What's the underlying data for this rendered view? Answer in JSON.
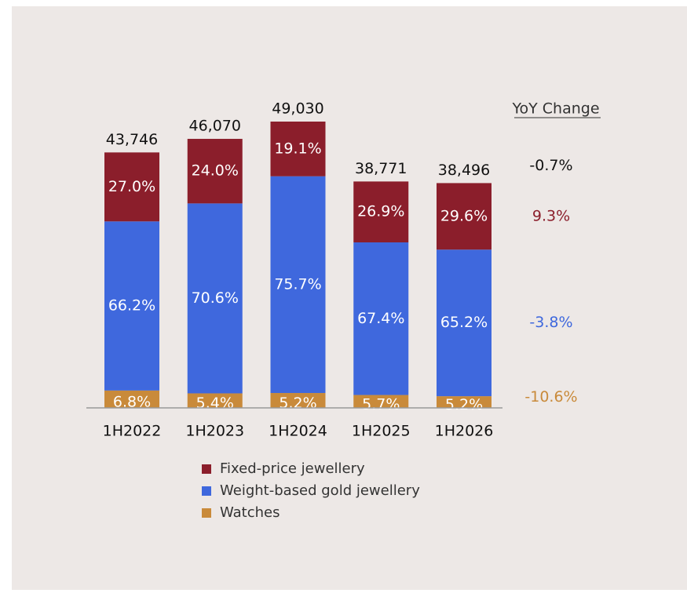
{
  "chart_data": {
    "type": "stacked-bar",
    "categories": [
      "1H2022",
      "1H2023",
      "1H2024",
      "1H2025",
      "1H2026"
    ],
    "totals": {
      "values": [
        43746,
        46070,
        49030,
        38771,
        38496
      ],
      "value_labels": [
        "43,746",
        "46,070",
        "49,030",
        "38,771",
        "38,496"
      ],
      "yoy": -0.7,
      "yoy_label": "-0.7%"
    },
    "yoy_title": "YoY Change",
    "series": [
      {
        "name": "Watches",
        "color": "#c98a3a",
        "values": [
          6.8,
          5.4,
          5.2,
          5.7,
          5.2
        ],
        "value_labels": [
          "6.8%",
          "5.4%",
          "5.2%",
          "5.7%",
          "5.2%"
        ],
        "yoy": -10.6,
        "yoy_label": "-10.6%"
      },
      {
        "name": "Weight-based gold jewellery",
        "color": "#3f68dd",
        "values": [
          66.2,
          70.6,
          75.7,
          67.4,
          65.2
        ],
        "value_labels": [
          "66.2%",
          "70.6%",
          "75.7%",
          "67.4%",
          "65.2%"
        ],
        "yoy": -3.8,
        "yoy_label": "-3.8%"
      },
      {
        "name": "Fixed-price jewellery",
        "color": "#8b1e2b",
        "values": [
          27.0,
          24.0,
          19.1,
          26.9,
          29.6
        ],
        "value_labels": [
          "27.0%",
          "24.0%",
          "19.1%",
          "26.9%",
          "29.6%"
        ],
        "yoy": 9.3,
        "yoy_label": "9.3%"
      }
    ]
  }
}
